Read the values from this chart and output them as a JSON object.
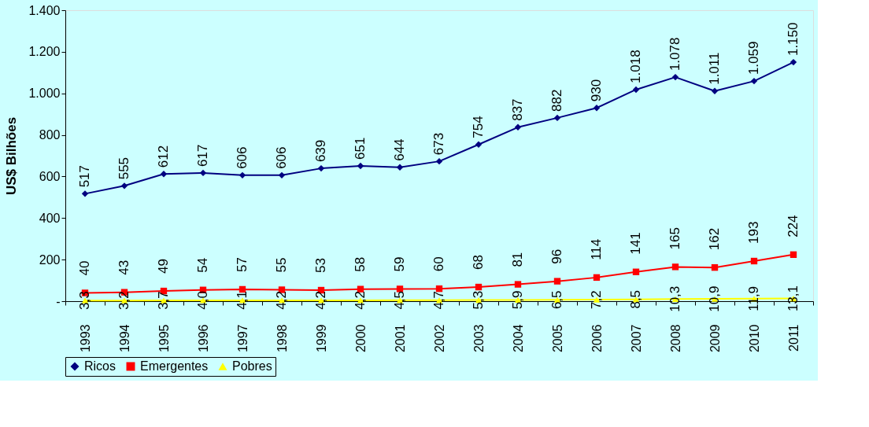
{
  "chart_data": {
    "type": "line",
    "ylabel": "US$ Bilhões",
    "categories": [
      "1993",
      "1994",
      "1995",
      "1996",
      "1997",
      "1998",
      "1999",
      "2000",
      "2001",
      "2002",
      "2003",
      "2004",
      "2005",
      "2006",
      "2007",
      "2008",
      "2009",
      "2010",
      "2011"
    ],
    "series": [
      {
        "name": "Ricos",
        "color": "#000080",
        "marker": "diamond",
        "values": [
          517,
          555,
          612,
          617,
          606,
          606,
          639,
          651,
          644,
          673,
          754,
          837,
          882,
          930,
          1018,
          1078,
          1011,
          1059,
          1150
        ],
        "value_labels": [
          "517",
          "555",
          "612",
          "617",
          "606",
          "606",
          "639",
          "651",
          "644",
          "673",
          "754",
          "837",
          "882",
          "930",
          "1.018",
          "1.078",
          "1.011",
          "1.059",
          "1.150"
        ]
      },
      {
        "name": "Emergentes",
        "color": "#ff0000",
        "marker": "square",
        "values": [
          40,
          43,
          49,
          54,
          57,
          55,
          53,
          58,
          59,
          60,
          68,
          81,
          96,
          114,
          141,
          165,
          162,
          193,
          224
        ],
        "value_labels": [
          "40",
          "43",
          "49",
          "54",
          "57",
          "55",
          "53",
          "58",
          "59",
          "60",
          "68",
          "81",
          "96",
          "114",
          "141",
          "165",
          "162",
          "193",
          "224"
        ]
      },
      {
        "name": "Pobres",
        "color": "#ffff00",
        "marker": "triangle",
        "values": [
          3.3,
          3.2,
          3.7,
          4.0,
          4.1,
          4.2,
          4.2,
          4.2,
          4.5,
          4.7,
          5.3,
          5.9,
          6.5,
          7.2,
          8.5,
          10.3,
          10.9,
          11.9,
          13.1
        ],
        "value_labels": [
          "3,3",
          "3,2",
          "3,7",
          "4,0",
          "4,1",
          "4,2",
          "4,2",
          "4,2",
          "4,5",
          "4,7",
          "5,3",
          "5,9",
          "6,5",
          "7,2",
          "8,5",
          "10,3",
          "10,9",
          "11,9",
          "13,1"
        ]
      }
    ],
    "ylim": [
      0,
      1400
    ],
    "yticks": [
      {
        "value": 0,
        "label": "-"
      },
      {
        "value": 200,
        "label": "200"
      },
      {
        "value": 400,
        "label": "400"
      },
      {
        "value": 600,
        "label": "600"
      },
      {
        "value": 800,
        "label": "800"
      },
      {
        "value": 1000,
        "label": "1.000"
      },
      {
        "value": 1200,
        "label": "1.200"
      },
      {
        "value": 1400,
        "label": "1.400"
      }
    ],
    "grid": false,
    "legend": "bottom"
  }
}
